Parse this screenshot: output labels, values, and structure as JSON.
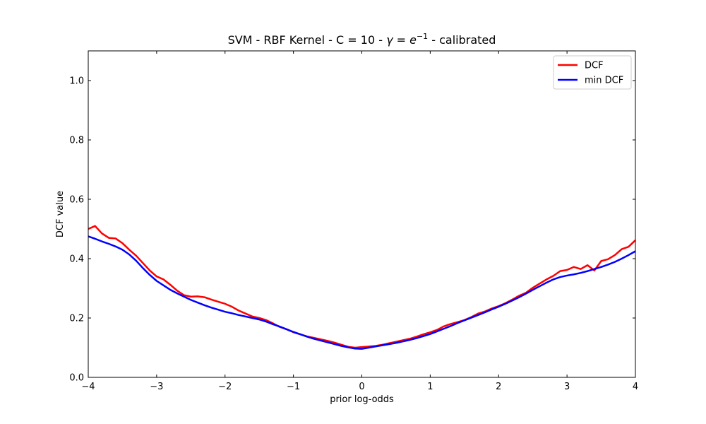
{
  "chart_data": {
    "type": "line",
    "title_parts": [
      "SVM - RBF Kernel - C = 10 - ",
      "γ",
      " = ",
      "e",
      "−1",
      " - calibrated"
    ],
    "xlabel": "prior log-odds",
    "ylabel": "DCF value",
    "xlim": [
      -4,
      4
    ],
    "ylim": [
      0,
      1.1
    ],
    "xticks": [
      -4,
      -3,
      -2,
      -1,
      0,
      1,
      2,
      3,
      4
    ],
    "xtick_labels": [
      "−4",
      "−3",
      "−2",
      "−1",
      "0",
      "1",
      "2",
      "3",
      "4"
    ],
    "yticks": [
      0,
      0.2,
      0.4,
      0.6,
      0.8,
      1.0
    ],
    "ytick_labels": [
      "0.0",
      "0.2",
      "0.4",
      "0.6",
      "0.8",
      "1.0"
    ],
    "grid": false,
    "legend_position": "top-right",
    "x": [
      -4.0,
      -3.9,
      -3.8,
      -3.7,
      -3.6,
      -3.5,
      -3.4,
      -3.3,
      -3.2,
      -3.1,
      -3.0,
      -2.9,
      -2.8,
      -2.7,
      -2.6,
      -2.5,
      -2.4,
      -2.3,
      -2.2,
      -2.1,
      -2.0,
      -1.9,
      -1.8,
      -1.7,
      -1.6,
      -1.5,
      -1.4,
      -1.3,
      -1.2,
      -1.1,
      -1.0,
      -0.9,
      -0.8,
      -0.7,
      -0.6,
      -0.5,
      -0.4,
      -0.3,
      -0.2,
      -0.1,
      0.0,
      0.1,
      0.2,
      0.3,
      0.4,
      0.5,
      0.6,
      0.7,
      0.8,
      0.9,
      1.0,
      1.1,
      1.2,
      1.3,
      1.4,
      1.5,
      1.6,
      1.7,
      1.8,
      1.9,
      2.0,
      2.1,
      2.2,
      2.3,
      2.4,
      2.5,
      2.6,
      2.7,
      2.8,
      2.9,
      3.0,
      3.1,
      3.2,
      3.3,
      3.4,
      3.5,
      3.6,
      3.7,
      3.8,
      3.9,
      4.0
    ],
    "series": [
      {
        "name": "DCF",
        "color": "#ff0000",
        "values": [
          0.5,
          0.51,
          0.485,
          0.47,
          0.468,
          0.452,
          0.43,
          0.41,
          0.385,
          0.36,
          0.34,
          0.33,
          0.312,
          0.292,
          0.277,
          0.272,
          0.273,
          0.27,
          0.262,
          0.255,
          0.248,
          0.238,
          0.225,
          0.215,
          0.205,
          0.2,
          0.193,
          0.182,
          0.17,
          0.162,
          0.152,
          0.145,
          0.138,
          0.133,
          0.128,
          0.123,
          0.117,
          0.11,
          0.103,
          0.1,
          0.102,
          0.104,
          0.106,
          0.11,
          0.115,
          0.12,
          0.125,
          0.13,
          0.137,
          0.145,
          0.152,
          0.16,
          0.172,
          0.18,
          0.186,
          0.193,
          0.203,
          0.215,
          0.222,
          0.232,
          0.24,
          0.25,
          0.262,
          0.275,
          0.285,
          0.302,
          0.316,
          0.33,
          0.342,
          0.358,
          0.362,
          0.372,
          0.365,
          0.378,
          0.36,
          0.392,
          0.398,
          0.412,
          0.432,
          0.44,
          0.462
        ]
      },
      {
        "name": "min DCF",
        "color": "#0000ff",
        "values": [
          0.475,
          0.467,
          0.458,
          0.45,
          0.441,
          0.43,
          0.414,
          0.393,
          0.368,
          0.345,
          0.325,
          0.31,
          0.295,
          0.283,
          0.272,
          0.261,
          0.252,
          0.243,
          0.235,
          0.228,
          0.221,
          0.216,
          0.21,
          0.205,
          0.2,
          0.195,
          0.188,
          0.179,
          0.171,
          0.162,
          0.153,
          0.145,
          0.137,
          0.13,
          0.124,
          0.118,
          0.112,
          0.106,
          0.101,
          0.097,
          0.096,
          0.1,
          0.104,
          0.108,
          0.112,
          0.116,
          0.121,
          0.126,
          0.132,
          0.139,
          0.146,
          0.155,
          0.164,
          0.173,
          0.183,
          0.192,
          0.201,
          0.21,
          0.219,
          0.229,
          0.238,
          0.248,
          0.259,
          0.27,
          0.282,
          0.295,
          0.307,
          0.319,
          0.33,
          0.338,
          0.343,
          0.347,
          0.352,
          0.358,
          0.365,
          0.372,
          0.38,
          0.389,
          0.4,
          0.412,
          0.425
        ]
      }
    ]
  }
}
